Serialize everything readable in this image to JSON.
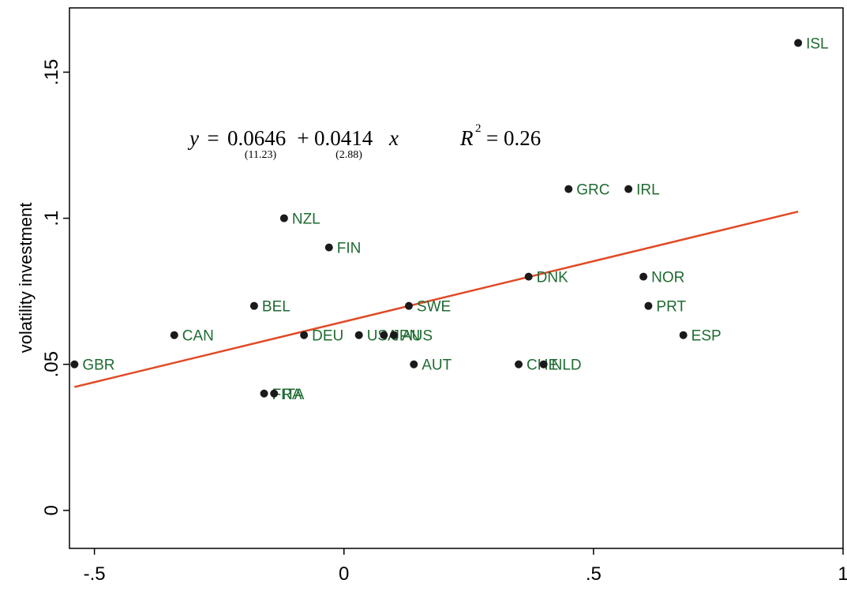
{
  "chart_data": {
    "type": "scatter",
    "title": "",
    "xlabel": "",
    "ylabel": "volatility investment",
    "xlim": [
      -0.55,
      1.0
    ],
    "ylim": [
      -0.013,
      0.172
    ],
    "x_ticks": [
      {
        "value": -0.5,
        "label": "-.5"
      },
      {
        "value": 0,
        "label": "0"
      },
      {
        "value": 0.5,
        "label": ".5"
      },
      {
        "value": 1,
        "label": "1"
      }
    ],
    "y_ticks": [
      {
        "value": 0,
        "label": "0"
      },
      {
        "value": 0.05,
        "label": ".05"
      },
      {
        "value": 0.1,
        "label": ".1"
      },
      {
        "value": 0.15,
        "label": ".15"
      }
    ],
    "points": [
      {
        "label": "ISL",
        "x": 0.91,
        "y": 0.16
      },
      {
        "label": "GRC",
        "x": 0.45,
        "y": 0.11
      },
      {
        "label": "IRL",
        "x": 0.57,
        "y": 0.11
      },
      {
        "label": "NZL",
        "x": -0.12,
        "y": 0.1
      },
      {
        "label": "FIN",
        "x": -0.03,
        "y": 0.09
      },
      {
        "label": "DNK",
        "x": 0.37,
        "y": 0.08
      },
      {
        "label": "NOR",
        "x": 0.6,
        "y": 0.08
      },
      {
        "label": "BEL",
        "x": -0.18,
        "y": 0.07
      },
      {
        "label": "SWE",
        "x": 0.13,
        "y": 0.07
      },
      {
        "label": "PRT",
        "x": 0.61,
        "y": 0.07
      },
      {
        "label": "CAN",
        "x": -0.34,
        "y": 0.06
      },
      {
        "label": "DEU",
        "x": -0.08,
        "y": 0.06
      },
      {
        "label": "USA",
        "x": 0.03,
        "y": 0.06
      },
      {
        "label": "JPN",
        "x": 0.08,
        "y": 0.06
      },
      {
        "label": "AUS",
        "x": 0.1,
        "y": 0.06
      },
      {
        "label": "ESP",
        "x": 0.68,
        "y": 0.06
      },
      {
        "label": "GBR",
        "x": -0.54,
        "y": 0.05
      },
      {
        "label": "AUT",
        "x": 0.14,
        "y": 0.05
      },
      {
        "label": "CHE",
        "x": 0.35,
        "y": 0.05
      },
      {
        "label": "NLD",
        "x": 0.4,
        "y": 0.05
      },
      {
        "label": "FRA",
        "x": -0.16,
        "y": 0.04
      },
      {
        "label": "ITA",
        "x": -0.14,
        "y": 0.04
      }
    ],
    "fit_line": {
      "intercept": 0.0646,
      "slope": 0.0414,
      "x_range": [
        -0.54,
        0.91
      ]
    },
    "grid": false,
    "legend": "none"
  },
  "equation": {
    "lhs": "y",
    "equals": "=",
    "intercept": "0.0646",
    "plus": "+",
    "slope": "0.0414",
    "var": "x",
    "intercept_t": "(11.23)",
    "slope_t": "(2.88)",
    "r2_symbol": "R",
    "r2_exponent": "2",
    "r2_value": "= 0.26"
  },
  "colors": {
    "point": "#1a1a1a",
    "label": "#1f6b32",
    "fit_line": "#e04a26",
    "axis": "#000000"
  }
}
